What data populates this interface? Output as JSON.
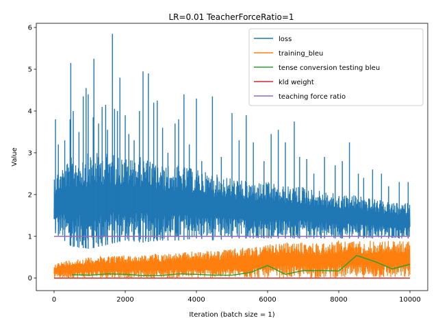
{
  "chart_data": {
    "type": "line",
    "title": "LR=0.01 TeacherForceRatio=1",
    "xlabel": "Iteration (batch size = 1)",
    "ylabel": "Value",
    "xlim": [
      -500,
      10500
    ],
    "ylim": [
      -0.3,
      6.1
    ],
    "xticks": [
      0,
      2000,
      4000,
      6000,
      8000,
      10000
    ],
    "yticks": [
      0,
      1,
      2,
      3,
      4,
      5,
      6
    ],
    "grid": false,
    "legend_position": "top-right",
    "colors": {
      "loss": "#1f77b4",
      "training_bleu": "#ff7f0e",
      "tense_bleu": "#2ca02c",
      "kld": "#d62728",
      "tf": "#9467bd"
    },
    "series": [
      {
        "name": "loss",
        "kind": "noisy",
        "x": [
          0,
          500,
          1000,
          1500,
          2000,
          2500,
          3000,
          3500,
          4000,
          4500,
          5000,
          5500,
          6000,
          6500,
          7000,
          7500,
          8000,
          8500,
          9000,
          9500,
          10000
        ],
        "lower": [
          1.1,
          0.75,
          0.7,
          0.8,
          0.9,
          0.85,
          0.9,
          0.9,
          0.95,
          0.9,
          0.95,
          0.95,
          0.95,
          0.95,
          0.95,
          0.95,
          0.95,
          0.95,
          0.95,
          0.95,
          0.95
        ],
        "upper": [
          2.5,
          2.9,
          3.0,
          3.0,
          2.9,
          2.9,
          2.7,
          2.7,
          2.6,
          2.5,
          2.4,
          2.3,
          2.3,
          2.2,
          2.2,
          2.1,
          2.0,
          2.0,
          1.9,
          1.8,
          1.8
        ],
        "spikes": [
          [
            40,
            3.8
          ],
          [
            120,
            3.2
          ],
          [
            300,
            3.3
          ],
          [
            450,
            3.8
          ],
          [
            470,
            5.15
          ],
          [
            540,
            4.0
          ],
          [
            700,
            3.5
          ],
          [
            820,
            4.35
          ],
          [
            900,
            4.55
          ],
          [
            960,
            4.4
          ],
          [
            1100,
            3.85
          ],
          [
            1120,
            5.25
          ],
          [
            1250,
            3.7
          ],
          [
            1350,
            4.1
          ],
          [
            1450,
            4.15
          ],
          [
            1500,
            3.55
          ],
          [
            1640,
            5.85
          ],
          [
            1700,
            4.05
          ],
          [
            1780,
            4.0
          ],
          [
            1850,
            4.8
          ],
          [
            2000,
            3.9
          ],
          [
            2100,
            3.45
          ],
          [
            2250,
            3.3
          ],
          [
            2400,
            4.0
          ],
          [
            2500,
            4.95
          ],
          [
            2650,
            4.9
          ],
          [
            2800,
            4.2
          ],
          [
            2900,
            4.25
          ],
          [
            3050,
            3.6
          ],
          [
            3200,
            3.0
          ],
          [
            3400,
            3.7
          ],
          [
            3500,
            3.8
          ],
          [
            3650,
            4.4
          ],
          [
            3800,
            3.2
          ],
          [
            4000,
            4.3
          ],
          [
            4150,
            2.8
          ],
          [
            4450,
            4.35
          ],
          [
            4700,
            2.9
          ],
          [
            5000,
            3.95
          ],
          [
            5200,
            3.3
          ],
          [
            5400,
            3.9
          ],
          [
            5600,
            3.25
          ],
          [
            5900,
            2.8
          ],
          [
            6100,
            3.45
          ],
          [
            6300,
            3.55
          ],
          [
            6500,
            3.25
          ],
          [
            6750,
            3.75
          ],
          [
            6900,
            2.9
          ],
          [
            7100,
            2.85
          ],
          [
            7300,
            2.5
          ],
          [
            7600,
            2.9
          ],
          [
            7900,
            2.7
          ],
          [
            8100,
            2.8
          ],
          [
            8300,
            3.25
          ],
          [
            8550,
            2.5
          ],
          [
            8700,
            2.4
          ],
          [
            8950,
            2.6
          ],
          [
            9200,
            2.5
          ],
          [
            9400,
            2.2
          ],
          [
            9700,
            2.3
          ],
          [
            9950,
            2.3
          ]
        ]
      },
      {
        "name": "training_bleu",
        "kind": "noisy",
        "x": [
          0,
          500,
          1000,
          1500,
          2000,
          2500,
          3000,
          3500,
          4000,
          4500,
          5000,
          5500,
          6000,
          6500,
          7000,
          7500,
          8000,
          8500,
          9000,
          9500,
          10000
        ],
        "lower": [
          0.0,
          0.0,
          0.0,
          0.0,
          0.0,
          0.0,
          0.0,
          0.0,
          0.0,
          0.0,
          0.0,
          0.0,
          0.0,
          0.0,
          0.0,
          0.0,
          0.0,
          0.0,
          0.0,
          0.0,
          0.0
        ],
        "upper": [
          0.35,
          0.45,
          0.5,
          0.55,
          0.55,
          0.55,
          0.6,
          0.6,
          0.65,
          0.65,
          0.7,
          0.75,
          0.8,
          0.85,
          0.85,
          0.85,
          0.9,
          0.9,
          0.9,
          0.9,
          0.9
        ],
        "spikes": []
      },
      {
        "name": "tense conversion testing bleu",
        "kind": "line",
        "x": [
          500,
          1000,
          1500,
          2000,
          2500,
          3000,
          3500,
          4000,
          4500,
          5000,
          5500,
          6000,
          6500,
          7000,
          7500,
          8000,
          8500,
          9000,
          9500,
          10000
        ],
        "y": [
          0.08,
          0.07,
          0.1,
          0.09,
          0.06,
          0.06,
          0.1,
          0.09,
          0.07,
          0.07,
          0.13,
          0.3,
          0.09,
          0.18,
          0.18,
          0.17,
          0.54,
          0.4,
          0.22,
          0.33
        ]
      },
      {
        "name": "kld weight",
        "kind": "line",
        "x": [
          0,
          10000
        ],
        "y": [
          0,
          0
        ]
      },
      {
        "name": "teaching force ratio",
        "kind": "line",
        "x": [
          0,
          10000
        ],
        "y": [
          1,
          1
        ]
      }
    ]
  }
}
